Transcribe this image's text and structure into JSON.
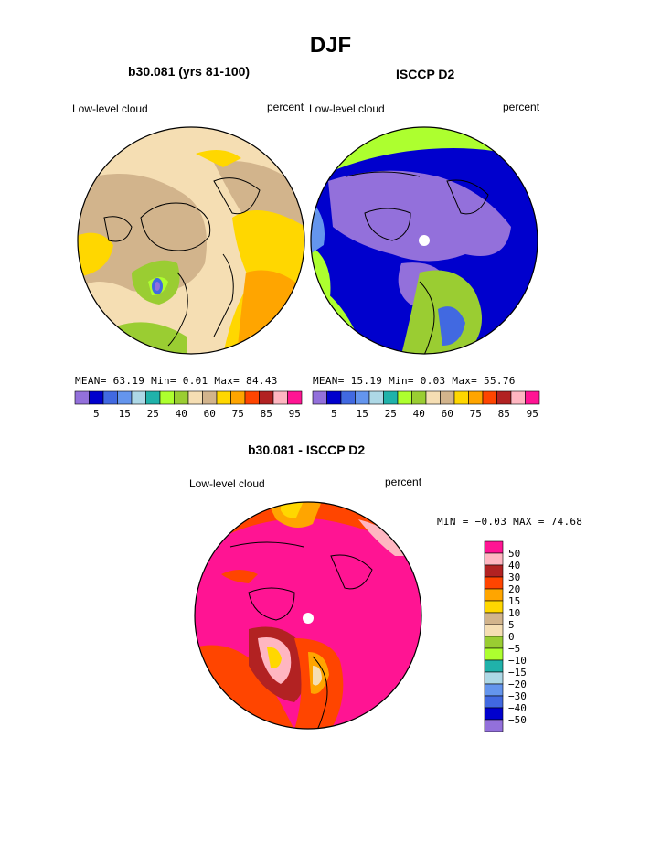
{
  "title": "DJF",
  "panels": [
    {
      "title": "b30.081 (yrs 81-100)",
      "left_label": "Low-level cloud",
      "right_label": "percent",
      "stats": {
        "mean_label": "MEAN=",
        "mean": "63.19",
        "min_label": "Min=",
        "min": "0.01",
        "max_label": "Max=",
        "max": "84.43"
      }
    },
    {
      "title": "ISCCP D2",
      "left_label": "Low-level cloud",
      "right_label": "percent",
      "stats": {
        "mean_label": "MEAN=",
        "mean": "15.19",
        "min_label": "Min=",
        "min": "0.03",
        "max_label": "Max=",
        "max": "55.76"
      }
    },
    {
      "title": "b30.081 - ISCCP D2",
      "left_label": "Low-level cloud",
      "right_label": "percent",
      "minmax": "MIN =  −0.03 MAX =  74.68"
    }
  ],
  "colorbar_top": {
    "colors": [
      "#9370db",
      "#0000cd",
      "#4169e1",
      "#6495ed",
      "#add8e6",
      "#20b2aa",
      "#adff2f",
      "#9acd32",
      "#f5deb3",
      "#d2b48c",
      "#ffd700",
      "#ffa500",
      "#ff4500",
      "#b22222",
      "#ffb6c1",
      "#ff1493"
    ],
    "labels": [
      "5",
      "15",
      "25",
      "40",
      "60",
      "75",
      "85",
      "95"
    ]
  },
  "colorbar_diff": {
    "colors": [
      "#9370db",
      "#0000cd",
      "#4169e1",
      "#6495ed",
      "#add8e6",
      "#20b2aa",
      "#adff2f",
      "#9acd32",
      "#f5deb3",
      "#d2b48c",
      "#ffd700",
      "#ffa500",
      "#ff4500",
      "#b22222",
      "#ffb6c1",
      "#ff1493"
    ],
    "labels": [
      "50",
      "40",
      "30",
      "20",
      "15",
      "10",
      "5",
      "0",
      "−5",
      "−10",
      "−15",
      "−20",
      "−30",
      "−40",
      "−50"
    ]
  }
}
